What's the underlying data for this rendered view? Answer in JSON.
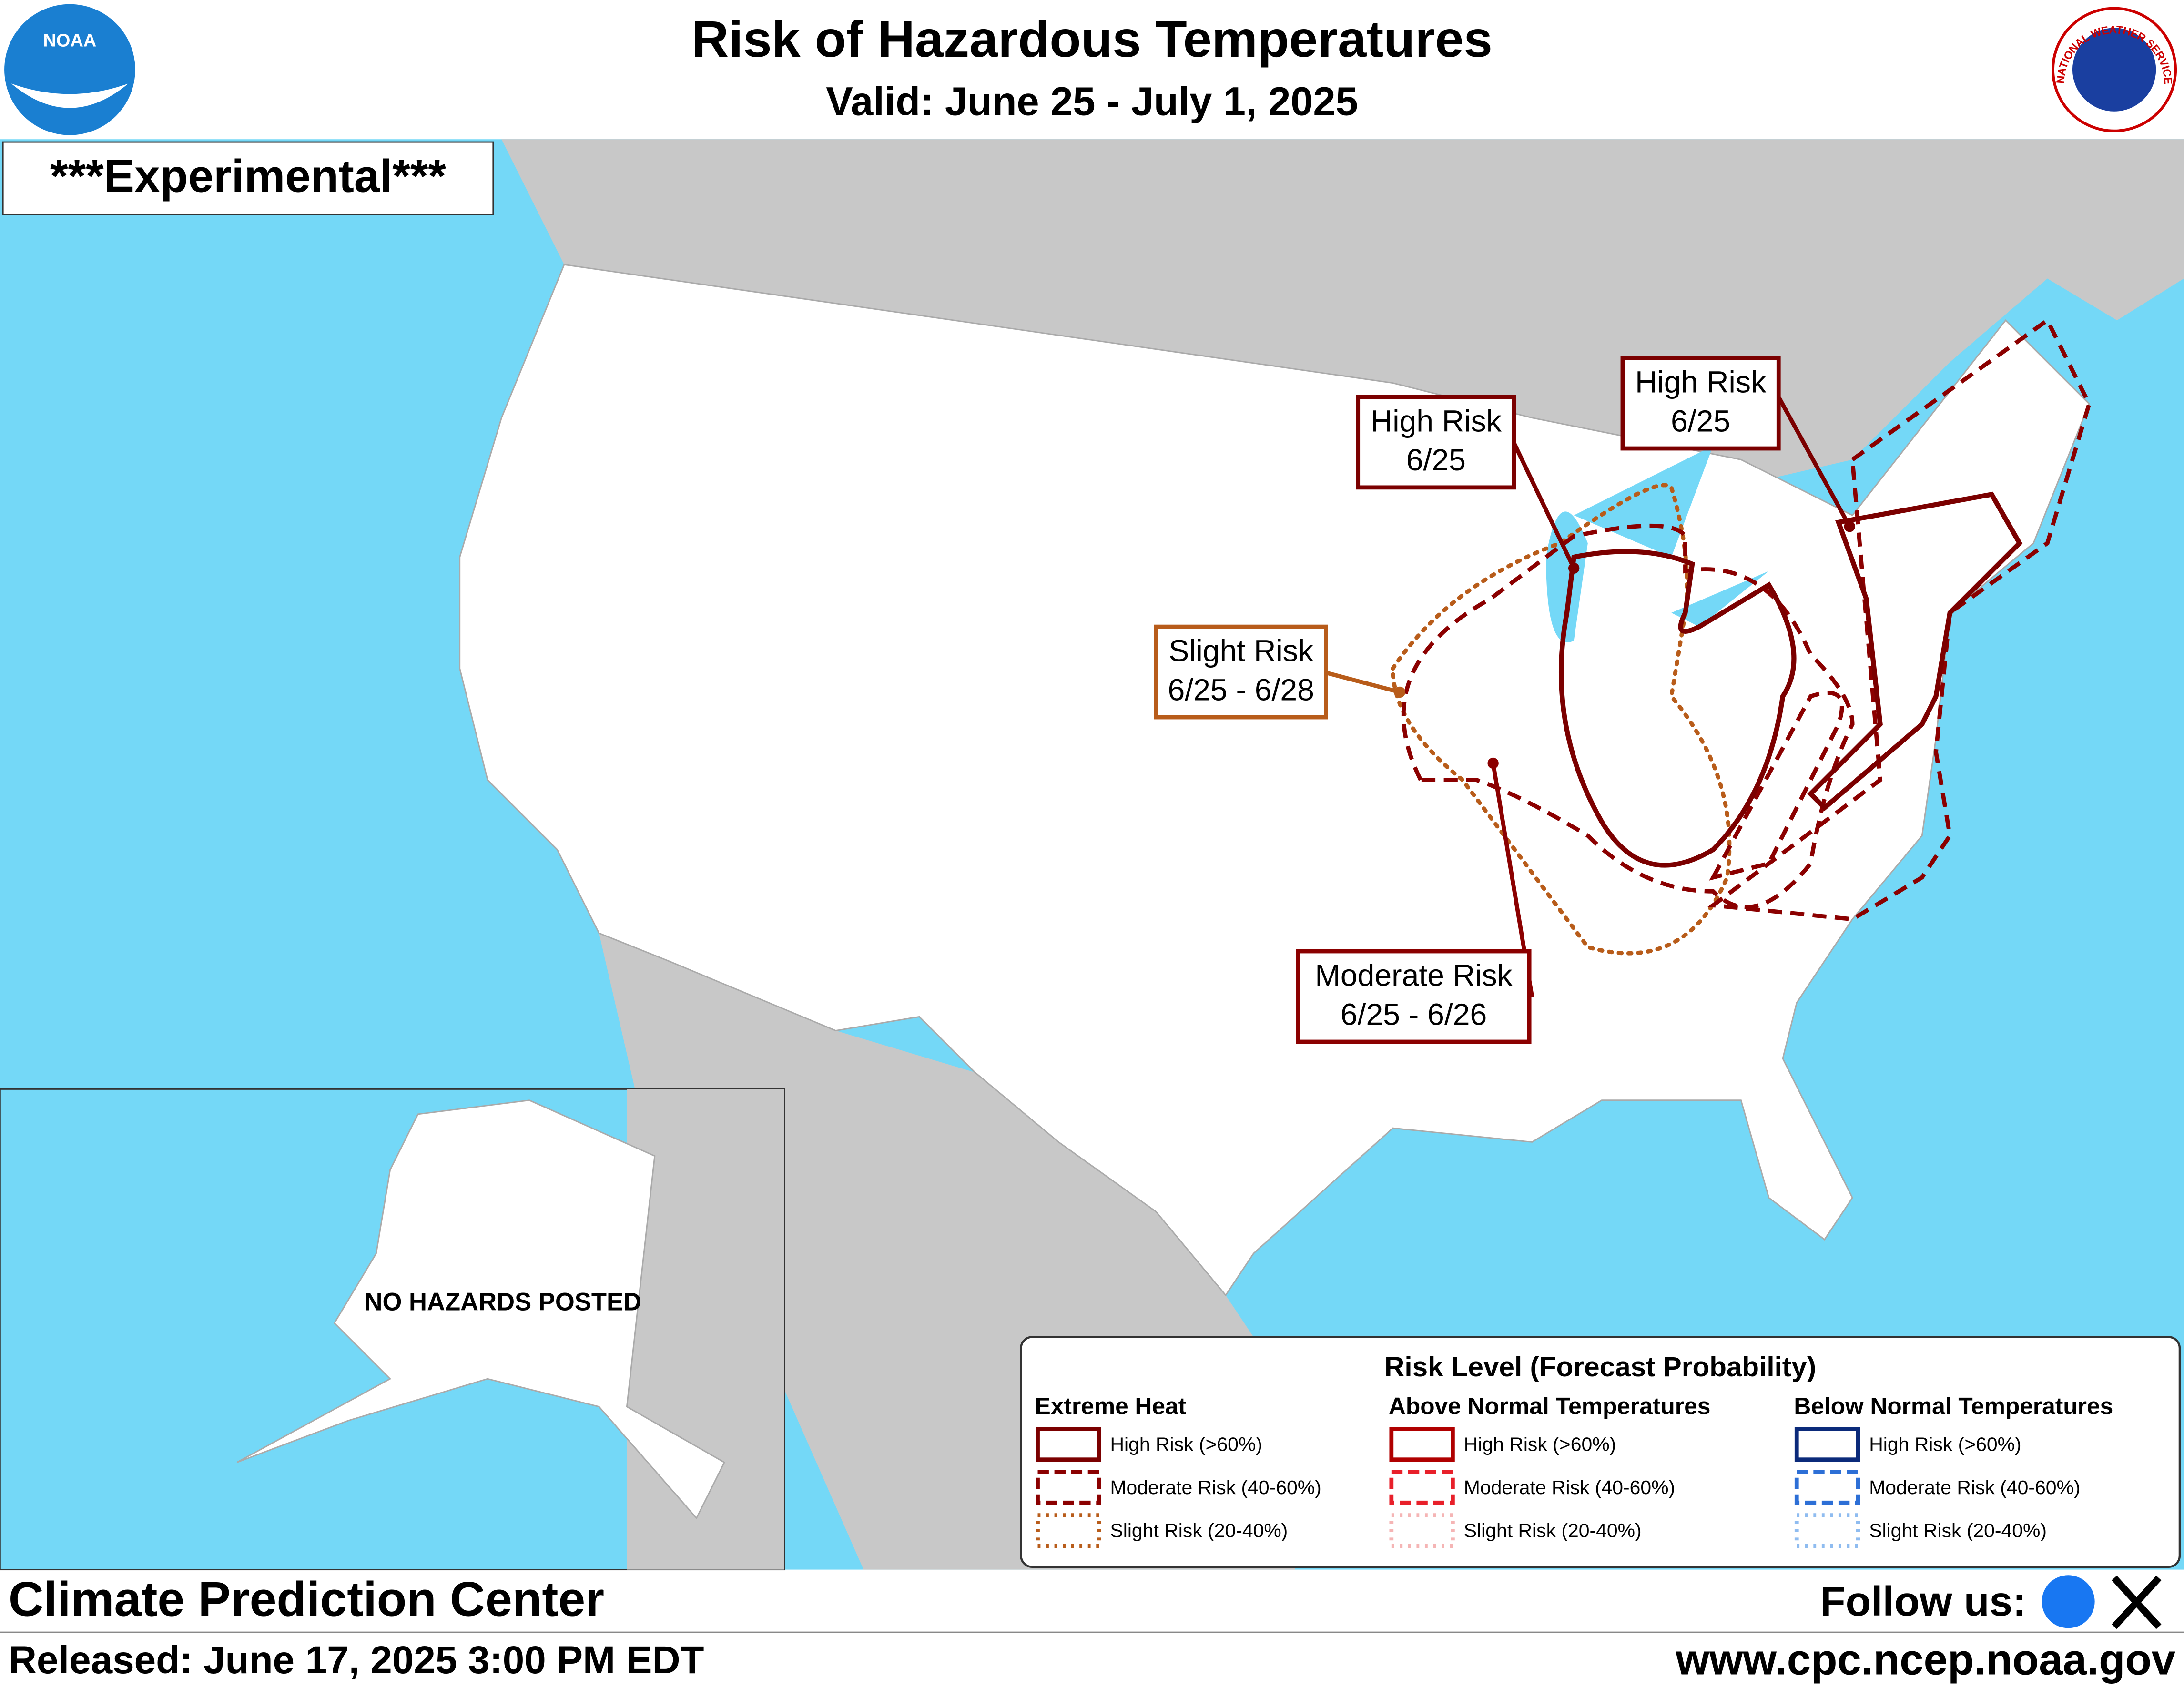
{
  "header": {
    "title": "Risk of Hazardous Temperatures",
    "subtitle": "Valid: June 25 - July 1, 2025",
    "noaa_logo_text": "NOAA",
    "nws_logo_text": "NATIONAL WEATHER SERVICE"
  },
  "map": {
    "experimental": "***Experimental***",
    "alaska_note": "NO HAZARDS POSTED",
    "labels": [
      {
        "risk": "High Risk",
        "dates": "6/25"
      },
      {
        "risk": "High Risk",
        "dates": "6/25"
      },
      {
        "risk": "Slight Risk",
        "dates": "6/25 - 6/28"
      },
      {
        "risk": "Moderate Risk",
        "dates": "6/25 - 6/26"
      }
    ]
  },
  "legend": {
    "title": "Risk Level (Forecast Probability)",
    "groups": [
      {
        "header": "Extreme Heat",
        "items": [
          "High Risk (>60%)",
          "Moderate Risk (40-60%)",
          "Slight Risk (20-40%)"
        ]
      },
      {
        "header": "Above Normal Temperatures",
        "items": [
          "High Risk (>60%)",
          "Moderate Risk (40-60%)",
          "Slight Risk (20-40%)"
        ]
      },
      {
        "header": "Below Normal Temperatures",
        "items": [
          "High Risk (>60%)",
          "Moderate Risk (40-60%)",
          "Slight Risk (20-40%)"
        ]
      }
    ]
  },
  "footer": {
    "center": "Climate Prediction Center",
    "released": "Released: June 17, 2025 3:00 PM EDT",
    "follow": "Follow us:",
    "url": "www.cpc.ncep.noaa.gov"
  }
}
